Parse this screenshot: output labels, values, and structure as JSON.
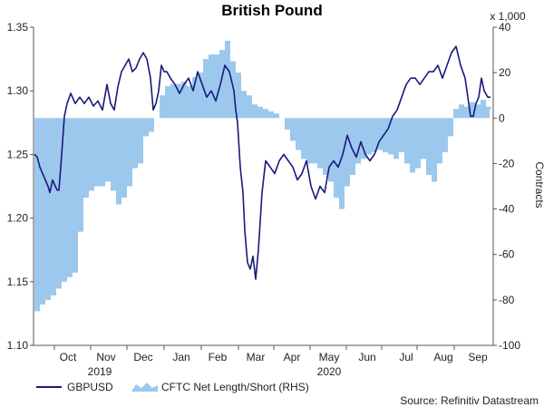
{
  "chart_data": {
    "type": "line+area",
    "title": "British Pound",
    "multiplier_label": "x 1,000",
    "right_axis_label": "Contracts",
    "source": "Source: Refinitiv Datastream",
    "left_axis": {
      "ylim": [
        1.1,
        1.35
      ],
      "ticks": [
        "1.35",
        "1.30",
        "1.25",
        "1.20",
        "1.15",
        "1.10"
      ]
    },
    "right_axis": {
      "ylim": [
        -100,
        40
      ],
      "ticks": [
        "40",
        "20",
        "0",
        "-20",
        "-40",
        "-60",
        "-80",
        "-100"
      ]
    },
    "months": [
      "Oct",
      "Nov",
      "Dec",
      "Jan",
      "Feb",
      "Mar",
      "Apr",
      "May",
      "Jun",
      "Jul",
      "Aug",
      "Sep"
    ],
    "years": [
      "2019",
      "2020"
    ],
    "colors": {
      "line": "#1a1a7a",
      "area": "#9cc8ee",
      "axis": "#555555"
    },
    "series": [
      {
        "name": "GBPUSD",
        "axis": "left",
        "x": [
          0,
          3,
          6,
          9,
          12,
          15,
          17,
          20,
          23,
          25,
          27,
          29,
          31,
          33,
          36,
          40,
          45,
          50,
          55,
          60,
          65,
          70,
          75,
          80,
          84,
          88,
          92,
          96,
          100,
          104,
          108,
          112,
          116,
          120,
          124,
          128,
          131,
          134,
          137,
          140,
          143,
          146,
          150,
          155,
          160,
          165,
          170,
          175,
          180,
          185,
          190,
          195,
          200,
          205,
          210,
          215,
          220,
          222,
          224,
          227,
          230,
          232,
          235,
          238,
          241,
          244,
          247,
          251,
          255,
          260,
          265,
          270,
          275,
          280,
          285,
          290,
          295,
          300,
          305,
          310,
          315,
          320,
          325,
          330,
          335,
          340,
          345,
          350,
          355,
          360,
          365,
          370,
          375,
          380,
          385,
          390,
          395,
          400,
          405,
          410,
          415,
          420,
          425,
          430,
          435,
          440,
          445,
          450,
          455,
          460,
          465,
          470,
          475,
          478,
          481,
          484,
          487,
          490,
          493,
          496,
          500,
          503
        ],
        "values": [
          1.25,
          1.248,
          1.24,
          1.235,
          1.23,
          1.225,
          1.22,
          1.23,
          1.225,
          1.222,
          1.222,
          1.24,
          1.26,
          1.28,
          1.29,
          1.298,
          1.29,
          1.295,
          1.29,
          1.295,
          1.288,
          1.292,
          1.285,
          1.305,
          1.29,
          1.285,
          1.303,
          1.315,
          1.32,
          1.325,
          1.315,
          1.318,
          1.325,
          1.33,
          1.325,
          1.31,
          1.285,
          1.29,
          1.3,
          1.32,
          1.315,
          1.315,
          1.31,
          1.305,
          1.298,
          1.305,
          1.31,
          1.3,
          1.315,
          1.305,
          1.295,
          1.3,
          1.292,
          1.305,
          1.32,
          1.315,
          1.3,
          1.285,
          1.275,
          1.24,
          1.22,
          1.19,
          1.165,
          1.16,
          1.17,
          1.152,
          1.175,
          1.22,
          1.245,
          1.24,
          1.235,
          1.245,
          1.25,
          1.245,
          1.24,
          1.23,
          1.235,
          1.245,
          1.225,
          1.215,
          1.225,
          1.22,
          1.24,
          1.245,
          1.24,
          1.25,
          1.265,
          1.255,
          1.248,
          1.26,
          1.25,
          1.245,
          1.25,
          1.26,
          1.265,
          1.27,
          1.28,
          1.285,
          1.295,
          1.305,
          1.31,
          1.31,
          1.305,
          1.31,
          1.315,
          1.315,
          1.32,
          1.31,
          1.32,
          1.33,
          1.335,
          1.32,
          1.31,
          1.295,
          1.28,
          1.28,
          1.29,
          1.295,
          1.31,
          1.3,
          1.295,
          1.295
        ]
      },
      {
        "name": "CFTC Net Length/Short (RHS)",
        "axis": "right",
        "x": [
          0,
          6,
          12,
          18,
          24,
          30,
          36,
          42,
          48,
          54,
          60,
          66,
          72,
          78,
          84,
          90,
          96,
          102,
          108,
          114,
          120,
          126,
          132,
          138,
          144,
          150,
          156,
          162,
          168,
          174,
          180,
          186,
          192,
          198,
          204,
          210,
          216,
          222,
          228,
          234,
          240,
          246,
          252,
          258,
          264,
          270,
          276,
          282,
          288,
          294,
          300,
          306,
          312,
          318,
          324,
          330,
          336,
          342,
          348,
          354,
          360,
          366,
          372,
          378,
          384,
          390,
          396,
          402,
          408,
          414,
          420,
          426,
          432,
          438,
          444,
          450,
          456,
          462,
          468,
          474,
          480,
          486,
          492,
          498,
          504
        ],
        "values": [
          -85,
          -82,
          -80,
          -78,
          -75,
          -72,
          -70,
          -68,
          -50,
          -35,
          -32,
          -30,
          -30,
          -28,
          -32,
          -38,
          -35,
          -30,
          -22,
          -20,
          -8,
          -6,
          0,
          10,
          14,
          15,
          15,
          16,
          14,
          18,
          20,
          26,
          28,
          28,
          30,
          34,
          25,
          20,
          12,
          10,
          6,
          5,
          4,
          3,
          2,
          0,
          -5,
          -10,
          -14,
          -18,
          -20,
          -20,
          -22,
          -25,
          -28,
          -35,
          -40,
          -30,
          -25,
          -20,
          -18,
          -16,
          -15,
          -14,
          -15,
          -16,
          -18,
          -15,
          -20,
          -24,
          -22,
          -18,
          -25,
          -28,
          -20,
          -15,
          -8,
          4,
          6,
          5,
          7,
          6,
          8,
          5,
          4
        ]
      }
    ]
  }
}
